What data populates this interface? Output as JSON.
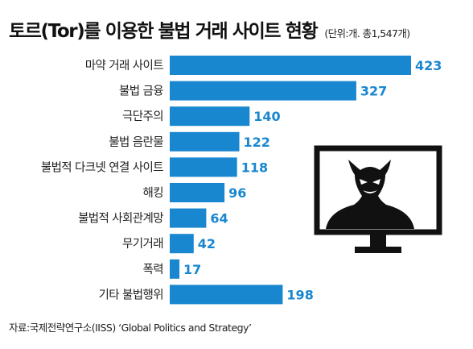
{
  "header": {
    "title": "토르(Tor)를 이용한 불법 거래 사이트 현황",
    "unit": "(단위:개. 총1,547개)"
  },
  "source": "자료:국제전략연구소(IISS) ‘Global Politics and Strategy’",
  "colors": {
    "bar": "#1987cf",
    "value_text": "#1987cf",
    "label_text": "#222222",
    "illustration": "#111111"
  },
  "illustration_icon": "devil-on-monitor-icon",
  "chart_data": {
    "type": "bar",
    "orientation": "horizontal",
    "categories": [
      "마약 거래 사이트",
      "불법 금융",
      "극단주의",
      "불법 음란물",
      "불법적 다크넷 연결 사이트",
      "해킹",
      "불법적 사회관계망",
      "무기거래",
      "폭력",
      "기타 불법행위"
    ],
    "values": [
      423,
      327,
      140,
      122,
      118,
      96,
      64,
      42,
      17,
      198
    ],
    "xlim": [
      0,
      423
    ],
    "grid": false,
    "legend": "none"
  }
}
